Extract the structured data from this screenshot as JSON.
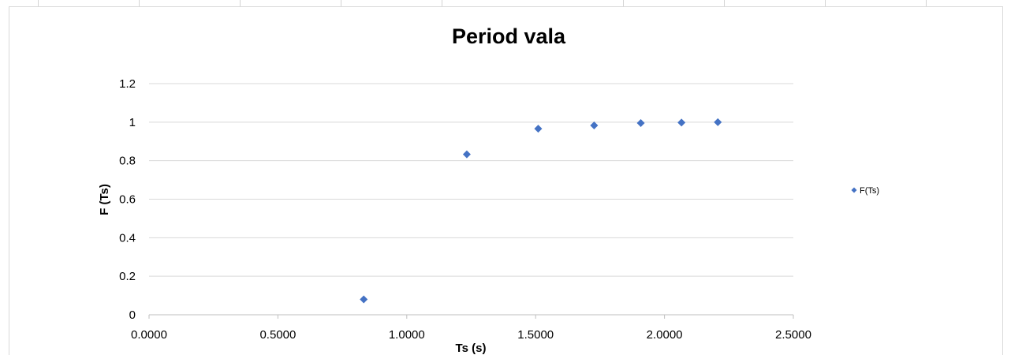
{
  "chart_data": {
    "type": "scatter",
    "title": "Period vala",
    "xlabel": "Ts (s)",
    "ylabel": "F (Ts)",
    "xlim": [
      0,
      2.5
    ],
    "ylim": [
      0,
      1.2
    ],
    "x_ticks": [
      "0.0000",
      "0.5000",
      "1.0000",
      "1.5000",
      "2.0000",
      "2.5000"
    ],
    "y_ticks": [
      "0",
      "0.2",
      "0.4",
      "0.6",
      "0.8",
      "1",
      "1.2"
    ],
    "grid": "horizontal",
    "legend_position": "right",
    "series": [
      {
        "name": "F(Ts)",
        "marker": "diamond",
        "color": "#4472C4",
        "points": [
          {
            "x": 0.833,
            "y": 0.08
          },
          {
            "x": 1.233,
            "y": 0.833
          },
          {
            "x": 1.51,
            "y": 0.966
          },
          {
            "x": 1.727,
            "y": 0.983
          },
          {
            "x": 1.908,
            "y": 0.995
          },
          {
            "x": 2.066,
            "y": 0.998
          },
          {
            "x": 2.207,
            "y": 1.0
          }
        ]
      }
    ]
  }
}
